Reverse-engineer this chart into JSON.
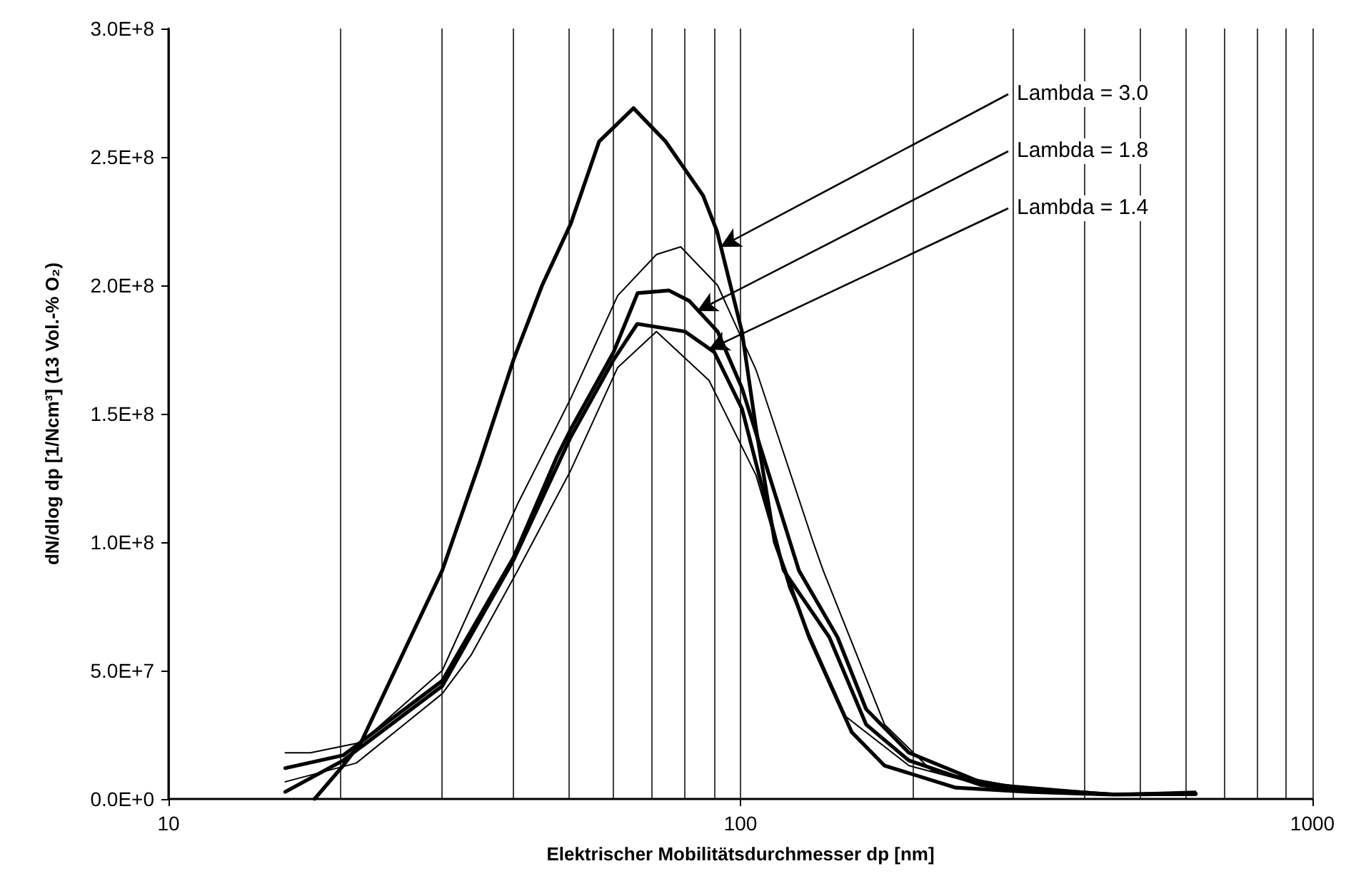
{
  "chart_data": {
    "type": "line",
    "xlabel": "Elektrischer Mobilitätsdurchmesser dp [nm]",
    "ylabel": "dN/dlog dp [1/Ncm³] (13 Vol.-% O₂)",
    "series": [
      {
        "color": "#000000",
        "x": [
          18,
          20.2,
          21.7,
          25,
          30.1,
          35,
          40.1,
          45,
          50.5,
          56.6,
          65,
          74,
          86,
          91,
          100.6,
          106.5,
          114.8,
          131.8,
          156.5,
          178.6,
          238,
          317,
          448,
          625
        ],
        "values": [
          0,
          13000000,
          22000000,
          51000000,
          89000000,
          131000000,
          171000000,
          200000000,
          224000000,
          256000000,
          269000000,
          256000000,
          235000000,
          221000000,
          182000000,
          144000000,
          100000000,
          63000000,
          26000000,
          13000000,
          4400000,
          2800000,
          1700000,
          2000000
        ]
      },
      {
        "color": "#000000",
        "x": [
          16,
          20.2,
          30.1,
          40.1,
          47.7,
          50.5,
          60,
          66.1,
          75,
          81.3,
          91.2,
          100.6,
          126.5,
          147.8,
          165.8,
          197,
          262,
          317,
          448,
          625
        ],
        "values": [
          12000000,
          17000000,
          46000000,
          94000000,
          133000000,
          144000000,
          174000000,
          197000000,
          198000000,
          194000000,
          182000000,
          160000000,
          89000000,
          63000000,
          35000000,
          18000000,
          6700000,
          3900000,
          1800000,
          2000000
        ]
      },
      {
        "color": "#000000",
        "x": [
          16,
          20.2,
          30.1,
          40.1,
          50.5,
          60,
          66,
          80,
          90,
          100.6,
          119,
          143,
          165.8,
          197,
          262,
          317,
          448,
          625
        ],
        "values": [
          2800000,
          15000000,
          44000000,
          93000000,
          141000000,
          171000000,
          185000000,
          182000000,
          174000000,
          152000000,
          89000000,
          63000000,
          29000000,
          15000000,
          5600000,
          3000000,
          1800000,
          2000000
        ]
      },
      {
        "color": "#000000",
        "x": [
          16,
          17.7,
          21.7,
          30.1,
          40.8,
          50.5,
          61,
          71.3,
          78.6,
          91.2,
          106.5,
          134,
          139.5,
          178.6,
          216,
          288,
          448,
          625
        ],
        "values": [
          18000000,
          18000000,
          22000000,
          50000000,
          115000000,
          156000000,
          196000000,
          212000000,
          215000000,
          200000000,
          167000000,
          100000000,
          89000000,
          29000000,
          11000000,
          5600000,
          2000000,
          3000000
        ]
      },
      {
        "color": "#000000",
        "x": [
          16,
          21.3,
          30.1,
          33.8,
          40.8,
          50.5,
          61,
          71.3,
          88.1,
          106.5,
          121.6,
          153,
          197,
          262,
          448,
          625
        ],
        "values": [
          6700000,
          14000000,
          41000000,
          56000000,
          89000000,
          128000000,
          168000000,
          182000000,
          163000000,
          126000000,
          82000000,
          32000000,
          13000000,
          5600000,
          2000000,
          2500000
        ]
      }
    ],
    "annotations": [
      {
        "text": "Lambda = 3.0",
        "x": 92.3,
        "y": 215000000
      },
      {
        "text": "Lambda = 1.8",
        "x": 84,
        "y": 190000000
      },
      {
        "text": "Lambda = 1.4",
        "x": 88,
        "y": 175000000
      }
    ],
    "log": "x",
    "xlim": [
      10,
      1000
    ],
    "xticks": [
      10,
      {
        "value": 20,
        "label": null
      },
      {
        "value": 30,
        "label": null
      },
      {
        "value": 40,
        "label": null
      },
      {
        "value": 50,
        "label": null
      },
      {
        "value": 60,
        "label": null
      },
      {
        "value": 70,
        "label": null
      },
      {
        "value": 80,
        "label": null
      },
      {
        "value": 90,
        "label": null
      },
      100,
      {
        "value": 200,
        "label": null
      },
      {
        "value": 300,
        "label": null
      },
      {
        "value": 400,
        "label": null
      },
      {
        "value": 500,
        "label": null
      },
      {
        "value": 600,
        "label": null
      },
      {
        "value": 700,
        "label": null
      },
      {
        "value": 800,
        "label": null
      },
      {
        "value": 900,
        "label": null
      },
      1000
    ],
    "ylim": [
      0,
      300000000
    ],
    "yticks": [
      {
        "value": 0,
        "label": "0.0E+0"
      },
      {
        "value": 50000000,
        "label": "5.0E+7"
      },
      {
        "value": 100000000,
        "label": "1.0E+8"
      },
      {
        "value": 150000000,
        "label": "1.5E+8"
      },
      {
        "value": 200000000,
        "label": "2.0E+8"
      },
      {
        "value": 250000000,
        "label": "2.5E+8"
      },
      {
        "value": 300000000,
        "label": "3.0E+8"
      }
    ],
    "grid": "x",
    "marker": "none",
    "line_style": "solid"
  }
}
